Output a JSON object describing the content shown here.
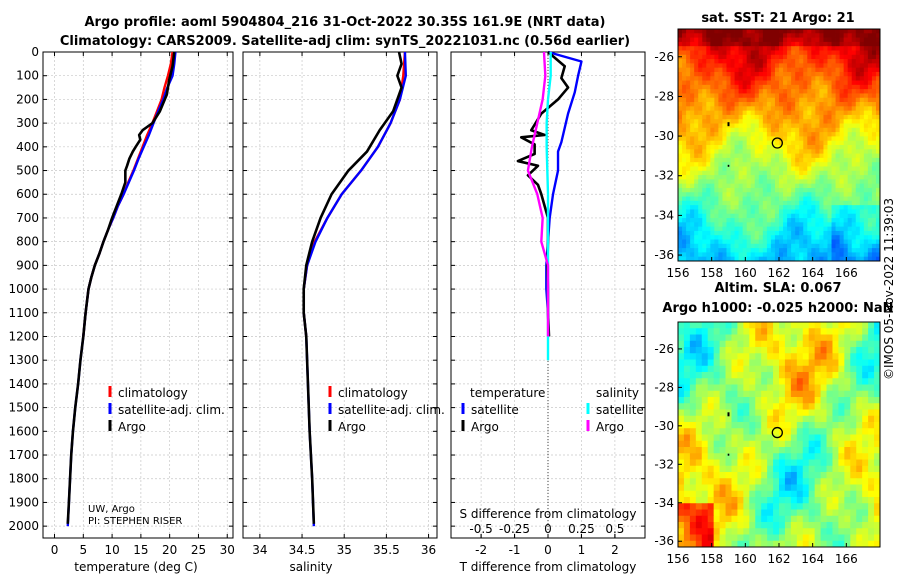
{
  "title_line1": "Argo profile: aoml 5904804_216 31-Oct-2022 30.35S 161.9E (NRT data)",
  "title_line2": "Climatology: CARS2009. Satellite-adj clim: synTS_20221031.nc (0.56d earlier)",
  "chart_data": [
    {
      "type": "line",
      "name": "temperature",
      "xlabel": "temperature (deg C)",
      "xlim": [
        -2,
        31
      ],
      "ylim": [
        0,
        2050
      ],
      "x_ticks": [
        "0",
        "5",
        "10",
        "15",
        "20",
        "25",
        "30"
      ],
      "x_tick_values": [
        0,
        5,
        10,
        15,
        20,
        25,
        30
      ],
      "y_ticks": [
        0,
        100,
        200,
        300,
        400,
        500,
        600,
        700,
        800,
        900,
        1000,
        1100,
        1200,
        1300,
        1400,
        1500,
        1600,
        1700,
        1800,
        1900,
        2000
      ],
      "legend": [
        "climatology",
        "satellite-adj. clim.",
        "Argo"
      ],
      "credit_line1": "UW, Argo",
      "credit_line2": "PI: STEPHEN RISER",
      "series": [
        {
          "name": "climatology",
          "color": "#ff0000",
          "points": [
            [
              20.5,
              0
            ],
            [
              20.2,
              50
            ],
            [
              19.7,
              100
            ],
            [
              19.1,
              150
            ],
            [
              18.6,
              200
            ],
            [
              17.8,
              250
            ],
            [
              17.0,
              300
            ],
            [
              16.1,
              350
            ],
            [
              15.3,
              400
            ],
            [
              14.5,
              450
            ],
            [
              13.7,
              500
            ],
            [
              12.8,
              550
            ],
            [
              12.0,
              600
            ],
            [
              11.0,
              650
            ],
            [
              10.2,
              700
            ],
            [
              9.3,
              750
            ],
            [
              8.5,
              800
            ],
            [
              7.8,
              850
            ],
            [
              7.0,
              900
            ],
            [
              6.4,
              950
            ],
            [
              5.9,
              1000
            ],
            [
              5.4,
              1100
            ],
            [
              5.0,
              1200
            ]
          ]
        },
        {
          "name": "satellite-adj. clim.",
          "color": "#0000ff",
          "points": [
            [
              21.0,
              0
            ],
            [
              20.8,
              50
            ],
            [
              20.5,
              100
            ],
            [
              19.6,
              150
            ],
            [
              18.9,
              200
            ],
            [
              18.0,
              250
            ],
            [
              17.2,
              300
            ],
            [
              16.4,
              350
            ],
            [
              15.5,
              400
            ],
            [
              14.6,
              450
            ],
            [
              13.8,
              500
            ],
            [
              12.9,
              550
            ],
            [
              12.0,
              600
            ],
            [
              11.0,
              650
            ],
            [
              10.2,
              700
            ],
            [
              9.3,
              750
            ],
            [
              8.5,
              800
            ],
            [
              7.8,
              850
            ],
            [
              7.0,
              900
            ],
            [
              6.4,
              950
            ],
            [
              5.9,
              1000
            ],
            [
              5.4,
              1100
            ],
            [
              5.0,
              1200
            ],
            [
              4.5,
              1300
            ],
            [
              4.1,
              1400
            ],
            [
              3.6,
              1500
            ],
            [
              3.2,
              1600
            ],
            [
              2.9,
              1700
            ],
            [
              2.7,
              1800
            ],
            [
              2.5,
              1900
            ],
            [
              2.3,
              2000
            ]
          ]
        },
        {
          "name": "Argo",
          "color": "#000000",
          "points": [
            [
              20.8,
              0
            ],
            [
              20.5,
              60
            ],
            [
              19.9,
              120
            ],
            [
              19.5,
              180
            ],
            [
              18.3,
              250
            ],
            [
              17.0,
              300
            ],
            [
              15.3,
              330
            ],
            [
              14.7,
              350
            ],
            [
              14.9,
              370
            ],
            [
              14.1,
              400
            ],
            [
              13.6,
              420
            ],
            [
              13.0,
              450
            ],
            [
              12.6,
              480
            ],
            [
              12.3,
              500
            ],
            [
              12.3,
              550
            ],
            [
              11.6,
              600
            ],
            [
              10.8,
              650
            ],
            [
              10.0,
              700
            ],
            [
              9.3,
              750
            ],
            [
              8.5,
              800
            ],
            [
              7.8,
              850
            ],
            [
              7.0,
              900
            ],
            [
              6.4,
              950
            ],
            [
              5.9,
              1000
            ],
            [
              5.4,
              1100
            ],
            [
              5.0,
              1200
            ],
            [
              4.5,
              1300
            ],
            [
              4.1,
              1400
            ],
            [
              3.6,
              1500
            ],
            [
              3.2,
              1600
            ],
            [
              2.9,
              1700
            ],
            [
              2.7,
              1800
            ],
            [
              2.5,
              1900
            ],
            [
              2.3,
              1990
            ]
          ]
        }
      ]
    },
    {
      "type": "line",
      "name": "salinity",
      "xlabel": "salinity",
      "xlim": [
        33.8,
        36.1
      ],
      "ylim": [
        0,
        2050
      ],
      "x_ticks": [
        "34",
        "34.5",
        "35",
        "35.5",
        "36"
      ],
      "x_tick_values": [
        34,
        34.5,
        35,
        35.5,
        36
      ],
      "legend": [
        "climatology",
        "satellite-adj. clim.",
        "Argo"
      ],
      "series": [
        {
          "name": "climatology",
          "color": "#ff0000",
          "points": [
            [
              35.72,
              0
            ],
            [
              35.7,
              100
            ],
            [
              35.66,
              200
            ],
            [
              35.55,
              300
            ],
            [
              35.4,
              400
            ],
            [
              35.2,
              500
            ],
            [
              34.97,
              600
            ],
            [
              34.8,
              700
            ],
            [
              34.65,
              800
            ],
            [
              34.56,
              900
            ],
            [
              34.52,
              1000
            ],
            [
              34.52,
              1100
            ],
            [
              34.55,
              1200
            ]
          ]
        },
        {
          "name": "satellite-adj. clim.",
          "color": "#0000ff",
          "points": [
            [
              35.72,
              0
            ],
            [
              35.73,
              100
            ],
            [
              35.66,
              200
            ],
            [
              35.55,
              300
            ],
            [
              35.4,
              400
            ],
            [
              35.2,
              500
            ],
            [
              34.97,
              600
            ],
            [
              34.8,
              700
            ],
            [
              34.66,
              800
            ],
            [
              34.56,
              900
            ],
            [
              34.52,
              1000
            ],
            [
              34.52,
              1100
            ],
            [
              34.55,
              1200
            ],
            [
              34.57,
              1400
            ],
            [
              34.59,
              1600
            ],
            [
              34.62,
              1800
            ],
            [
              34.64,
              2000
            ]
          ]
        },
        {
          "name": "Argo",
          "color": "#000000",
          "points": [
            [
              35.65,
              0
            ],
            [
              35.68,
              50
            ],
            [
              35.63,
              100
            ],
            [
              35.68,
              150
            ],
            [
              35.58,
              250
            ],
            [
              35.42,
              330
            ],
            [
              35.27,
              420
            ],
            [
              35.05,
              500
            ],
            [
              34.85,
              600
            ],
            [
              34.72,
              700
            ],
            [
              34.62,
              800
            ],
            [
              34.55,
              900
            ],
            [
              34.52,
              1000
            ],
            [
              34.52,
              1100
            ],
            [
              34.55,
              1200
            ],
            [
              34.57,
              1400
            ],
            [
              34.59,
              1600
            ],
            [
              34.62,
              1800
            ],
            [
              34.64,
              1990
            ]
          ]
        }
      ]
    },
    {
      "type": "line",
      "name": "difference",
      "xlabel": "T difference from climatology",
      "xlabel_top": "S difference from climatology",
      "xlim": [
        -2.9,
        2.9
      ],
      "ylim": [
        0,
        2050
      ],
      "x_ticks": [
        "-2",
        "-1",
        "0",
        "1",
        "2"
      ],
      "x_tick_values": [
        -2,
        -1,
        0,
        1,
        2
      ],
      "s_ticks": [
        "-0.5",
        "-0.25",
        "0",
        "0.25",
        "0.5"
      ],
      "s_tick_values": [
        -0.5,
        -0.25,
        0,
        0.25,
        0.5
      ],
      "legend_temperature": "temperature",
      "legend_salinity": "salinity",
      "legend_items": [
        "satellite",
        "Argo",
        "satellite",
        "Argo"
      ],
      "series": [
        {
          "name": "T satellite",
          "color": "#0000ff",
          "points": [
            [
              0,
              0
            ],
            [
              1.0,
              40
            ],
            [
              0.9,
              100
            ],
            [
              0.8,
              170
            ],
            [
              0.6,
              260
            ],
            [
              0.4,
              380
            ],
            [
              0.3,
              420
            ],
            [
              0.3,
              500
            ],
            [
              0.15,
              600
            ],
            [
              0.05,
              700
            ],
            [
              0,
              800
            ],
            [
              -0.05,
              900
            ],
            [
              -0.05,
              1000
            ],
            [
              0,
              1100
            ],
            [
              0.02,
              1200
            ]
          ]
        },
        {
          "name": "T Argo",
          "color": "#000000",
          "points": [
            [
              0,
              0
            ],
            [
              0.5,
              60
            ],
            [
              0.4,
              110
            ],
            [
              0.6,
              150
            ],
            [
              0.3,
              200
            ],
            [
              -0.2,
              260
            ],
            [
              -0.5,
              330
            ],
            [
              -0.1,
              350
            ],
            [
              -0.8,
              360
            ],
            [
              -0.4,
              390
            ],
            [
              -0.4,
              430
            ],
            [
              -0.9,
              460
            ],
            [
              -0.3,
              480
            ],
            [
              -0.6,
              520
            ],
            [
              -0.3,
              560
            ],
            [
              -0.2,
              600
            ],
            [
              -0.1,
              650
            ],
            [
              0,
              700
            ],
            [
              0,
              800
            ],
            [
              -0.02,
              900
            ],
            [
              0,
              1000
            ],
            [
              0,
              1100
            ],
            [
              0.03,
              1200
            ]
          ]
        },
        {
          "name": "S satellite",
          "color": "#00ffff",
          "points": [
            [
              0.02,
              0
            ],
            [
              0.02,
              100
            ],
            [
              0.0,
              200
            ],
            [
              -0.01,
              300
            ],
            [
              -0.01,
              400
            ],
            [
              0.0,
              600
            ],
            [
              0.0,
              800
            ],
            [
              0.0,
              1000
            ],
            [
              0.0,
              1200
            ],
            [
              0.0,
              1300
            ]
          ]
        },
        {
          "name": "S Argo",
          "color": "#ff00ff",
          "points": [
            [
              -0.03,
              0
            ],
            [
              -0.02,
              100
            ],
            [
              -0.04,
              200
            ],
            [
              -0.08,
              300
            ],
            [
              -0.12,
              400
            ],
            [
              -0.15,
              500
            ],
            [
              -0.08,
              600
            ],
            [
              -0.04,
              700
            ],
            [
              -0.05,
              800
            ],
            [
              0.0,
              900
            ],
            [
              0.0,
              1000
            ],
            [
              0.0,
              1100
            ],
            [
              0.0,
              1200
            ]
          ]
        }
      ]
    },
    {
      "type": "heatmap",
      "name": "sst-map",
      "title": "sat. SST: 21 Argo: 21",
      "x_ticks": [
        "156",
        "158",
        "160",
        "162",
        "164",
        "166"
      ],
      "x_tick_values": [
        156,
        158,
        160,
        162,
        164,
        166
      ],
      "y_ticks": [
        "-26",
        "-28",
        "-30",
        "-32",
        "-34",
        "-36"
      ],
      "y_tick_values": [
        -26,
        -28,
        -30,
        -32,
        -34,
        -36
      ],
      "xlim": [
        156,
        168
      ],
      "ylim": [
        -36.3,
        -24.6
      ],
      "argo_position": [
        161.9,
        -30.35
      ]
    },
    {
      "type": "heatmap",
      "name": "sla-map",
      "title_line1": "Altim. SLA: 0.067",
      "title_line2": "Argo h1000: -0.025 h2000: NaN",
      "x_ticks": [
        "156",
        "158",
        "160",
        "162",
        "164",
        "166"
      ],
      "x_tick_values": [
        156,
        158,
        160,
        162,
        164,
        166
      ],
      "y_ticks": [
        "-26",
        "-28",
        "-30",
        "-32",
        "-34",
        "-36"
      ],
      "y_tick_values": [
        -26,
        -28,
        -30,
        -32,
        -34,
        -36
      ],
      "xlim": [
        156,
        168
      ],
      "ylim": [
        -36.3,
        -24.6
      ],
      "argo_position": [
        161.9,
        -30.35
      ]
    }
  ],
  "stamp": "©IMOS 05-Nov-2022 11:39:03"
}
